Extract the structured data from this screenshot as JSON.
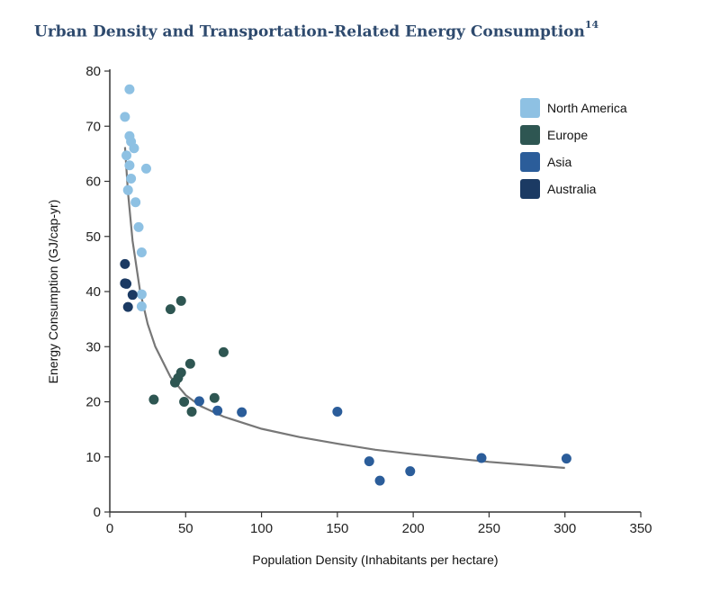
{
  "chart_data": {
    "type": "scatter",
    "title": "Urban Density and Transportation-Related Energy Consumption",
    "title_footnote": "14",
    "xlabel": "Population Density (Inhabitants per hectare)",
    "ylabel": "Energy Consumption (GJ/cap-yr)",
    "xlim": [
      0,
      350
    ],
    "ylim": [
      0,
      80
    ],
    "xticks": [
      0,
      50,
      100,
      150,
      200,
      250,
      300,
      350
    ],
    "yticks": [
      0,
      10,
      20,
      30,
      40,
      50,
      60,
      70,
      80
    ],
    "grid": false,
    "legend_position": "top-right",
    "series": [
      {
        "name": "North America",
        "color": "#8ec1e3",
        "points": [
          {
            "x": 13,
            "y": 76.7
          },
          {
            "x": 10,
            "y": 71.7
          },
          {
            "x": 13,
            "y": 68.2
          },
          {
            "x": 14,
            "y": 67.2
          },
          {
            "x": 16,
            "y": 66
          },
          {
            "x": 11,
            "y": 64.7
          },
          {
            "x": 13,
            "y": 62.9
          },
          {
            "x": 24,
            "y": 62.3
          },
          {
            "x": 14,
            "y": 60.5
          },
          {
            "x": 12,
            "y": 58.4
          },
          {
            "x": 17,
            "y": 56.2
          },
          {
            "x": 19,
            "y": 51.7
          },
          {
            "x": 21,
            "y": 47.1
          },
          {
            "x": 21,
            "y": 39.5
          },
          {
            "x": 21,
            "y": 37.3
          }
        ]
      },
      {
        "name": "Europe",
        "color": "#2e5652",
        "points": [
          {
            "x": 47,
            "y": 38.3
          },
          {
            "x": 40,
            "y": 36.8
          },
          {
            "x": 75,
            "y": 29
          },
          {
            "x": 53,
            "y": 26.9
          },
          {
            "x": 47,
            "y": 25.3
          },
          {
            "x": 45,
            "y": 24.3
          },
          {
            "x": 43,
            "y": 23.5
          },
          {
            "x": 69,
            "y": 20.7
          },
          {
            "x": 29,
            "y": 20.4
          },
          {
            "x": 49,
            "y": 20
          },
          {
            "x": 54,
            "y": 18.2
          }
        ]
      },
      {
        "name": "Asia",
        "color": "#2b5d9a",
        "points": [
          {
            "x": 59,
            "y": 20.1
          },
          {
            "x": 71,
            "y": 18.4
          },
          {
            "x": 87,
            "y": 18.1
          },
          {
            "x": 150,
            "y": 18.2
          },
          {
            "x": 171,
            "y": 9.2
          },
          {
            "x": 178,
            "y": 5.7
          },
          {
            "x": 198,
            "y": 7.4
          },
          {
            "x": 245,
            "y": 9.8
          },
          {
            "x": 301,
            "y": 9.7
          }
        ]
      },
      {
        "name": "Australia",
        "color": "#1b3a63",
        "points": [
          {
            "x": 10,
            "y": 45
          },
          {
            "x": 10,
            "y": 41.5
          },
          {
            "x": 11,
            "y": 41.4
          },
          {
            "x": 15,
            "y": 39.4
          },
          {
            "x": 12,
            "y": 37.2
          }
        ]
      }
    ],
    "trendline": {
      "type": "power",
      "color": "#777777",
      "x_range": [
        10,
        300
      ],
      "points": [
        {
          "x": 10,
          "y": 66.2
        },
        {
          "x": 12,
          "y": 58
        },
        {
          "x": 15,
          "y": 49.2
        },
        {
          "x": 20,
          "y": 40
        },
        {
          "x": 25,
          "y": 34.1
        },
        {
          "x": 30,
          "y": 30
        },
        {
          "x": 40,
          "y": 24.5
        },
        {
          "x": 50,
          "y": 21.2
        },
        {
          "x": 60,
          "y": 19.2
        },
        {
          "x": 75,
          "y": 17.3
        },
        {
          "x": 100,
          "y": 15.1
        },
        {
          "x": 125,
          "y": 13.6
        },
        {
          "x": 150,
          "y": 12.4
        },
        {
          "x": 175,
          "y": 11.3
        },
        {
          "x": 200,
          "y": 10.5
        },
        {
          "x": 250,
          "y": 9.1
        },
        {
          "x": 300,
          "y": 8
        }
      ]
    }
  }
}
